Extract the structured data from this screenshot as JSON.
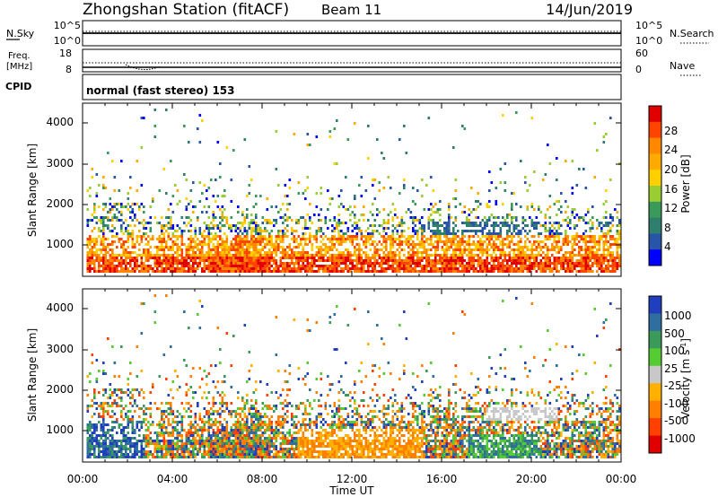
{
  "header": {
    "station": "Zhongshan Station (fitACF)",
    "beam": "Beam 11",
    "date": "14/Jun/2019"
  },
  "chart_data": [
    {
      "type": "line",
      "panel": "noise",
      "left_label": "N.Sky",
      "right_label": "N.Search",
      "left_ticks": [
        "10^5",
        "10^0"
      ],
      "right_ticks": [
        "10^5",
        "10^0"
      ],
      "line_style": "solid (N.Sky), dotted (N.Search)"
    },
    {
      "type": "line",
      "panel": "frequency",
      "left_label_lines": [
        "Freq.",
        "[MHz]"
      ],
      "left_ticks": [
        18,
        8
      ],
      "right_label": "Nave",
      "right_ticks": [
        60,
        0
      ]
    },
    {
      "type": "text",
      "panel": "cpid",
      "label": "CPID",
      "value": "normal (fast stereo) 153"
    },
    {
      "type": "heatmap",
      "panel": "power",
      "xlabel": "",
      "ylabel": "Slant Range [km]",
      "ylim": [
        180,
        4500
      ],
      "yticks": [
        1000,
        2000,
        3000,
        4000
      ],
      "colorbar_label": "Power [dB]",
      "colorbar_ticks": [
        "28",
        "24",
        "20",
        "16",
        "12",
        "8",
        "4"
      ],
      "colorbar_colors": [
        "#e00000",
        "#ff4400",
        "#ff8800",
        "#ffaa00",
        "#ffd000",
        "#9acd32",
        "#3a9a5a",
        "#2f7f6f",
        "#2855a8",
        "#0000ff"
      ]
    },
    {
      "type": "heatmap",
      "panel": "velocity",
      "xlabel": "Time UT",
      "ylabel": "Slant Range [km]",
      "ylim": [
        180,
        4500
      ],
      "yticks": [
        1000,
        2000,
        3000,
        4000
      ],
      "xticks": [
        "00:00",
        "04:00",
        "08:00",
        "12:00",
        "16:00",
        "20:00",
        "00:00"
      ],
      "colorbar_label": "Velocity [m s^-1]",
      "colorbar_ticks": [
        "1000",
        "500",
        "100",
        "25",
        "-25",
        "-100",
        "-500",
        "-1000"
      ],
      "colorbar_colors": [
        "#1f3fbf",
        "#2e6fa0",
        "#3a9a5a",
        "#55cc33",
        "#c8c8c8",
        "#ffb000",
        "#ff8000",
        "#ff4000",
        "#e00000"
      ]
    }
  ]
}
